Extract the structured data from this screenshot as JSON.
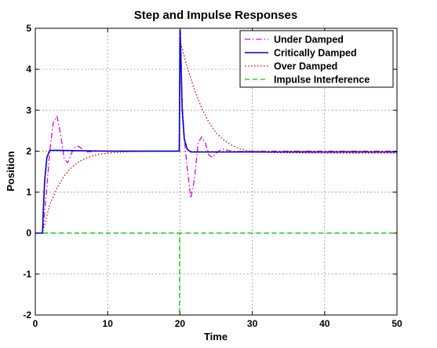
{
  "chart_data": {
    "type": "line",
    "title": "Step and Impulse Responses",
    "xlabel": "Time",
    "ylabel": "Position",
    "xlim": [
      0,
      50
    ],
    "ylim": [
      -2,
      5
    ],
    "xticks": [
      "0",
      "10",
      "20",
      "30",
      "40",
      "50"
    ],
    "yticks": [
      "-2",
      "-1",
      "0",
      "1",
      "2",
      "3",
      "4",
      "5"
    ],
    "grid": true,
    "legend_position": "top-right",
    "series": [
      {
        "name": "Under Damped",
        "color": "#e000e0",
        "style": "dash-dot",
        "x": [
          0,
          1,
          1.5,
          2,
          2.5,
          3,
          3.5,
          4,
          4.5,
          5,
          5.5,
          6,
          6.5,
          7,
          8,
          9,
          10,
          12,
          15,
          19.9,
          20.05,
          20.3,
          20.6,
          21,
          21.5,
          22,
          22.5,
          23,
          23.5,
          24,
          24.5,
          25,
          25.5,
          26,
          27,
          28,
          30,
          35,
          40,
          45,
          50
        ],
        "y": [
          0,
          0,
          0.9,
          2.0,
          2.7,
          2.85,
          2.4,
          1.8,
          1.72,
          1.95,
          2.1,
          2.12,
          2.05,
          1.98,
          1.99,
          2.0,
          2.0,
          2.0,
          2.0,
          2.0,
          5.0,
          3.2,
          2.3,
          1.6,
          0.85,
          1.3,
          2.2,
          2.35,
          2.2,
          1.9,
          1.85,
          1.95,
          2.02,
          2.05,
          2.0,
          1.99,
          2.0,
          2.0,
          2.0,
          2.0,
          2.0
        ]
      },
      {
        "name": "Critically Damped",
        "color": "#0000cc",
        "style": "solid",
        "x": [
          0,
          1,
          1.1,
          1.3,
          1.6,
          2,
          3,
          10,
          19.9,
          20.0,
          20.1,
          20.3,
          20.6,
          21,
          21.5,
          22,
          30,
          40,
          50
        ],
        "y": [
          0,
          0,
          0.5,
          1.3,
          1.85,
          2.02,
          2.02,
          2.0,
          2.0,
          4.95,
          4.5,
          3.0,
          2.3,
          2.05,
          1.98,
          1.98,
          1.98,
          1.98,
          1.98
        ]
      },
      {
        "name": "Over Damped",
        "color": "#dd0000",
        "style": "dotted",
        "x": [
          0,
          1,
          2,
          3,
          4,
          5,
          6,
          7,
          8,
          9,
          10,
          12,
          14,
          16,
          19.9,
          20.0,
          21,
          22,
          23,
          24,
          25,
          26,
          27,
          28,
          29,
          30,
          32,
          35,
          40,
          45,
          50
        ],
        "y": [
          0,
          0,
          0.7,
          1.1,
          1.4,
          1.6,
          1.74,
          1.83,
          1.89,
          1.93,
          1.95,
          1.98,
          1.99,
          2.0,
          2.0,
          4.7,
          4.05,
          3.5,
          3.05,
          2.7,
          2.45,
          2.28,
          2.16,
          2.08,
          2.02,
          1.99,
          1.97,
          1.96,
          1.95,
          1.95,
          1.95
        ]
      },
      {
        "name": "Impulse Interference",
        "color": "#00cc00",
        "style": "dashed",
        "x": [
          0,
          19.95,
          19.95,
          19.95,
          50
        ],
        "y": [
          0,
          0,
          -2,
          0,
          0
        ]
      }
    ]
  }
}
